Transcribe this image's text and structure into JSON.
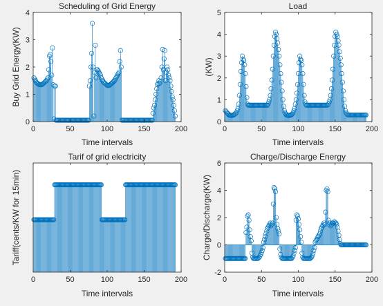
{
  "chart_data": [
    {
      "type": "stem",
      "title": "Scheduling of Grid Energy",
      "xlabel": "Time intervals",
      "ylabel": "Buy Grid Energy(KW)",
      "xlim": [
        0,
        200
      ],
      "ylim": [
        0,
        4
      ],
      "xticks": [
        0,
        50,
        100,
        150,
        200
      ],
      "yticks": [
        0,
        1,
        2,
        3,
        4
      ],
      "n": 192,
      "segments": [
        {
          "from": 1,
          "to": 2,
          "values": [
            1.6,
            1.55
          ]
        },
        {
          "from": 3,
          "to": 25,
          "values": [
            1.5,
            1.45,
            1.42,
            1.4,
            1.38,
            1.36,
            1.35,
            1.35,
            1.35,
            1.36,
            1.38,
            1.4,
            1.42,
            1.45,
            1.48,
            1.5,
            1.55,
            1.6,
            1.9,
            2.4,
            2.45,
            2.2,
            1.7
          ]
        },
        {
          "from": 26,
          "to": 28,
          "values": [
            2.7,
            1.35,
            0.1
          ]
        },
        {
          "from": 29,
          "to": 30,
          "values": [
            1.3,
            1.3
          ]
        },
        {
          "from": 31,
          "to": 75,
          "const": 0.05
        },
        {
          "from": 76,
          "to": 84,
          "values": [
            1.3,
            1.5,
            2.0,
            2.5,
            3.6,
            2.0,
            0.2,
            1.8,
            2.8
          ]
        },
        {
          "from": 85,
          "to": 91,
          "values": [
            1.6,
            1.9,
            1.9,
            1.85,
            1.8,
            1.75,
            1.7
          ]
        },
        {
          "from": 92,
          "to": 115,
          "values": [
            1.6,
            1.55,
            1.5,
            1.45,
            1.42,
            1.4,
            1.38,
            1.35,
            1.33,
            1.32,
            1.32,
            1.33,
            1.35,
            1.38,
            1.4,
            1.42,
            1.45,
            1.48,
            1.5,
            1.55,
            1.6,
            1.65,
            1.7,
            1.75
          ]
        },
        {
          "from": 116,
          "to": 119,
          "values": [
            1.8,
            2.2,
            2.6,
            2.0
          ]
        },
        {
          "from": 120,
          "to": 161,
          "const": 0.05
        },
        {
          "from": 162,
          "to": 175,
          "values": [
            0.3,
            0.5,
            0.6,
            0.8,
            1.0,
            1.2,
            1.35,
            1.4,
            1.5,
            1.4,
            1.45,
            1.6,
            2.0,
            2.65
          ]
        },
        {
          "from": 176,
          "to": 192,
          "values": [
            1.9,
            2.3,
            2.6,
            1.5,
            1.8,
            2.0,
            1.9,
            1.7,
            1.6,
            1.5,
            1.3,
            1.1,
            0.9,
            0.8,
            0.6,
            0.4,
            0.2
          ]
        }
      ]
    },
    {
      "type": "stem",
      "title": "Load",
      "xlabel": "Time intervals",
      "ylabel": "(KW)",
      "xlim": [
        0,
        200
      ],
      "ylim": [
        0,
        5
      ],
      "xticks": [
        0,
        50,
        100,
        150,
        200
      ],
      "yticks": [
        0,
        1,
        2,
        3,
        4,
        5
      ],
      "n": 192,
      "segments": [
        {
          "from": 1,
          "to": 5,
          "values": [
            0.5,
            0.45,
            0.4,
            0.38,
            0.35
          ]
        },
        {
          "from": 6,
          "to": 22,
          "values": [
            0.3,
            0.3,
            0.28,
            0.28,
            0.28,
            0.3,
            0.3,
            0.32,
            0.35,
            0.38,
            0.4,
            0.5,
            0.6,
            0.8,
            1.2,
            1.7,
            2.3
          ]
        },
        {
          "from": 23,
          "to": 32,
          "values": [
            2.7,
            3.0,
            2.85,
            2.8,
            2.6,
            2.2,
            1.6,
            1.1,
            0.8,
            0.75
          ]
        },
        {
          "from": 33,
          "to": 58,
          "const": 0.75
        },
        {
          "from": 59,
          "to": 72,
          "values": [
            0.8,
            0.9,
            1.0,
            1.2,
            1.5,
            1.9,
            2.4,
            3.0,
            3.5,
            3.9,
            4.1,
            4.0,
            3.8,
            3.6
          ]
        },
        {
          "from": 73,
          "to": 84,
          "values": [
            3.3,
            3.0,
            2.6,
            2.2,
            1.8,
            1.4,
            1.0,
            0.7,
            0.5,
            0.4,
            0.35,
            0.3
          ]
        },
        {
          "from": 85,
          "to": 112,
          "values": [
            0.3,
            0.28,
            0.28,
            0.28,
            0.3,
            0.3,
            0.32,
            0.35,
            0.4,
            0.5,
            0.6,
            0.8,
            1.0,
            1.3,
            1.7,
            2.2,
            2.7,
            3.0,
            2.85,
            2.8,
            2.6,
            2.2,
            1.7,
            1.2,
            0.9,
            0.8,
            0.75,
            0.75
          ]
        },
        {
          "from": 113,
          "to": 140,
          "const": 0.75
        },
        {
          "from": 141,
          "to": 156,
          "values": [
            0.8,
            0.9,
            1.0,
            1.2,
            1.5,
            1.9,
            2.4,
            3.0,
            3.5,
            3.9,
            4.1,
            4.0,
            3.9,
            3.7,
            3.5,
            3.2
          ]
        },
        {
          "from": 157,
          "to": 170,
          "values": [
            2.9,
            2.6,
            2.2,
            1.8,
            1.4,
            1.0,
            0.7,
            0.5,
            0.4,
            0.35,
            0.3,
            0.3,
            0.3,
            0.3
          ]
        },
        {
          "from": 171,
          "to": 192,
          "const": 0.3
        }
      ]
    },
    {
      "type": "stem",
      "title": "Tarif of grid electricity",
      "xlabel": "Time intervals",
      "ylabel": "Tariff(cents/KW for 15min)",
      "xlim": [
        0,
        200
      ],
      "ylim": [
        0,
        5
      ],
      "xticks": [
        0,
        50,
        100,
        150,
        200
      ],
      "yticks": [],
      "n": 192,
      "segments": [
        {
          "from": 1,
          "to": 28,
          "const": 2.4
        },
        {
          "from": 29,
          "to": 92,
          "const": 4.0
        },
        {
          "from": 93,
          "to": 124,
          "const": 2.4
        },
        {
          "from": 125,
          "to": 192,
          "const": 4.0
        }
      ]
    },
    {
      "type": "stem",
      "title": "Charge/Discharge Energy",
      "xlabel": "Time intervals",
      "ylabel": "Charge/Discharge(KW)",
      "xlim": [
        0,
        200
      ],
      "ylim": [
        -2,
        6
      ],
      "xticks": [
        0,
        50,
        100,
        150,
        200
      ],
      "yticks": [
        -2,
        0,
        2,
        4,
        6
      ],
      "n": 192,
      "segments": [
        {
          "from": 1,
          "to": 28,
          "const": -1.0
        },
        {
          "from": 29,
          "to": 36,
          "values": [
            0.9,
            1.3,
            2.1,
            2.2,
            1.8,
            1.1,
            0.6,
            0.3
          ]
        },
        {
          "from": 37,
          "to": 52,
          "values": [
            -0.6,
            -0.9,
            -1.0,
            -1.0,
            -1.0,
            -1.0,
            -1.0,
            -1.0,
            -1.0,
            -0.95,
            -0.9,
            -0.8,
            -0.7,
            -0.55,
            -0.4,
            -0.2
          ]
        },
        {
          "from": 53,
          "to": 65,
          "values": [
            0.2,
            0.4,
            0.6,
            0.8,
            1.0,
            1.2,
            1.3,
            1.4,
            1.5,
            1.6,
            1.4,
            1.5,
            1.6
          ]
        },
        {
          "from": 66,
          "to": 74,
          "values": [
            3.0,
            4.2,
            4.1,
            3.9,
            2.0,
            1.5,
            1.2,
            1.0,
            0.8
          ]
        },
        {
          "from": 75,
          "to": 96,
          "values": [
            -0.3,
            -0.7,
            -0.9,
            -1.0,
            -1.0,
            -1.0,
            -1.0,
            -1.0,
            -1.0,
            -1.0,
            -1.0,
            -1.0,
            -1.0,
            -1.0,
            -1.0,
            -1.0,
            -1.0,
            -0.9,
            -0.8,
            -0.6,
            -0.4,
            -0.2
          ]
        },
        {
          "from": 97,
          "to": 104,
          "values": [
            1.8,
            2.2,
            2.1,
            1.9,
            1.5,
            1.1,
            0.6,
            0.2
          ]
        },
        {
          "from": 105,
          "to": 122,
          "values": [
            -0.6,
            -0.9,
            -1.0,
            -1.0,
            -1.0,
            -1.0,
            -1.0,
            -1.0,
            -1.0,
            -1.0,
            -1.0,
            -1.0,
            -0.95,
            -0.9,
            -0.8,
            -0.6,
            -0.4,
            -0.2
          ]
        },
        {
          "from": 123,
          "to": 136,
          "values": [
            0.2,
            0.3,
            0.4,
            0.5,
            0.6,
            0.7,
            0.8,
            1.0,
            1.2,
            1.3,
            1.4,
            1.5,
            1.6,
            1.5
          ]
        },
        {
          "from": 137,
          "to": 147,
          "values": [
            2.4,
            4.0,
            4.1,
            3.9,
            1.8,
            1.5,
            1.6,
            1.4,
            1.5,
            1.6,
            1.6
          ]
        },
        {
          "from": 148,
          "to": 157,
          "values": [
            1.6,
            1.7,
            1.6,
            1.6,
            1.5,
            1.3,
            1.0,
            0.7,
            0.4,
            0.1
          ]
        },
        {
          "from": 158,
          "to": 192,
          "const": 0.0
        }
      ]
    }
  ]
}
